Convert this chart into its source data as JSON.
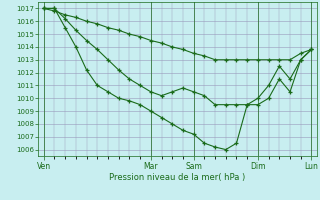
{
  "background_color": "#c8eef0",
  "grid_color": "#9999bb",
  "line_color": "#1a6b1a",
  "xlabel": "Pression niveau de la mer( hPa )",
  "yticks": [
    1006,
    1007,
    1008,
    1009,
    1010,
    1011,
    1012,
    1013,
    1014,
    1015,
    1016,
    1017
  ],
  "day_labels": [
    "Ven",
    "Mar",
    "Sam",
    "Dim",
    "Lun"
  ],
  "series1_x": [
    0,
    1,
    2,
    3,
    4,
    5,
    6,
    7,
    8,
    9,
    10,
    11,
    12,
    13,
    14,
    15,
    16,
    17,
    18,
    19,
    20,
    21,
    22,
    23,
    24,
    25
  ],
  "series1_y": [
    1017,
    1017,
    1015.5,
    1014.0,
    1012.2,
    1011.0,
    1010.5,
    1010.0,
    1009.8,
    1009.5,
    1009.0,
    1008.5,
    1008.0,
    1007.5,
    1007.2,
    1006.5,
    1006.2,
    1006.0,
    1006.5,
    1009.5,
    1010.0,
    1011.0,
    1012.5,
    1011.5,
    1013.0,
    1013.8
  ],
  "series2_x": [
    0,
    1,
    2,
    3,
    4,
    5,
    6,
    7,
    8,
    9,
    10,
    11,
    12,
    13,
    14,
    15,
    16,
    17,
    18,
    19,
    20,
    21,
    22,
    23,
    24,
    25
  ],
  "series2_y": [
    1017,
    1017,
    1016.2,
    1015.3,
    1014.5,
    1013.8,
    1013.0,
    1012.2,
    1011.5,
    1011.0,
    1010.5,
    1010.2,
    1010.5,
    1010.8,
    1010.5,
    1010.2,
    1009.5,
    1009.5,
    1009.5,
    1009.5,
    1009.5,
    1010.0,
    1011.5,
    1010.5,
    1013.0,
    1013.8
  ],
  "series3_x": [
    0,
    1,
    2,
    3,
    4,
    5,
    6,
    7,
    8,
    9,
    10,
    11,
    12,
    13,
    14,
    15,
    16,
    17,
    18,
    19,
    20,
    21,
    22,
    23,
    24,
    25
  ],
  "series3_y": [
    1017,
    1016.8,
    1016.5,
    1016.3,
    1016.0,
    1015.8,
    1015.5,
    1015.3,
    1015.0,
    1014.8,
    1014.5,
    1014.3,
    1014.0,
    1013.8,
    1013.5,
    1013.3,
    1013.0,
    1013.0,
    1013.0,
    1013.0,
    1013.0,
    1013.0,
    1013.0,
    1013.0,
    1013.5,
    1013.8
  ],
  "day_x": [
    0,
    10,
    14,
    20,
    25
  ],
  "n_total": 26,
  "ylim_low": 1005.5,
  "ylim_high": 1017.5
}
